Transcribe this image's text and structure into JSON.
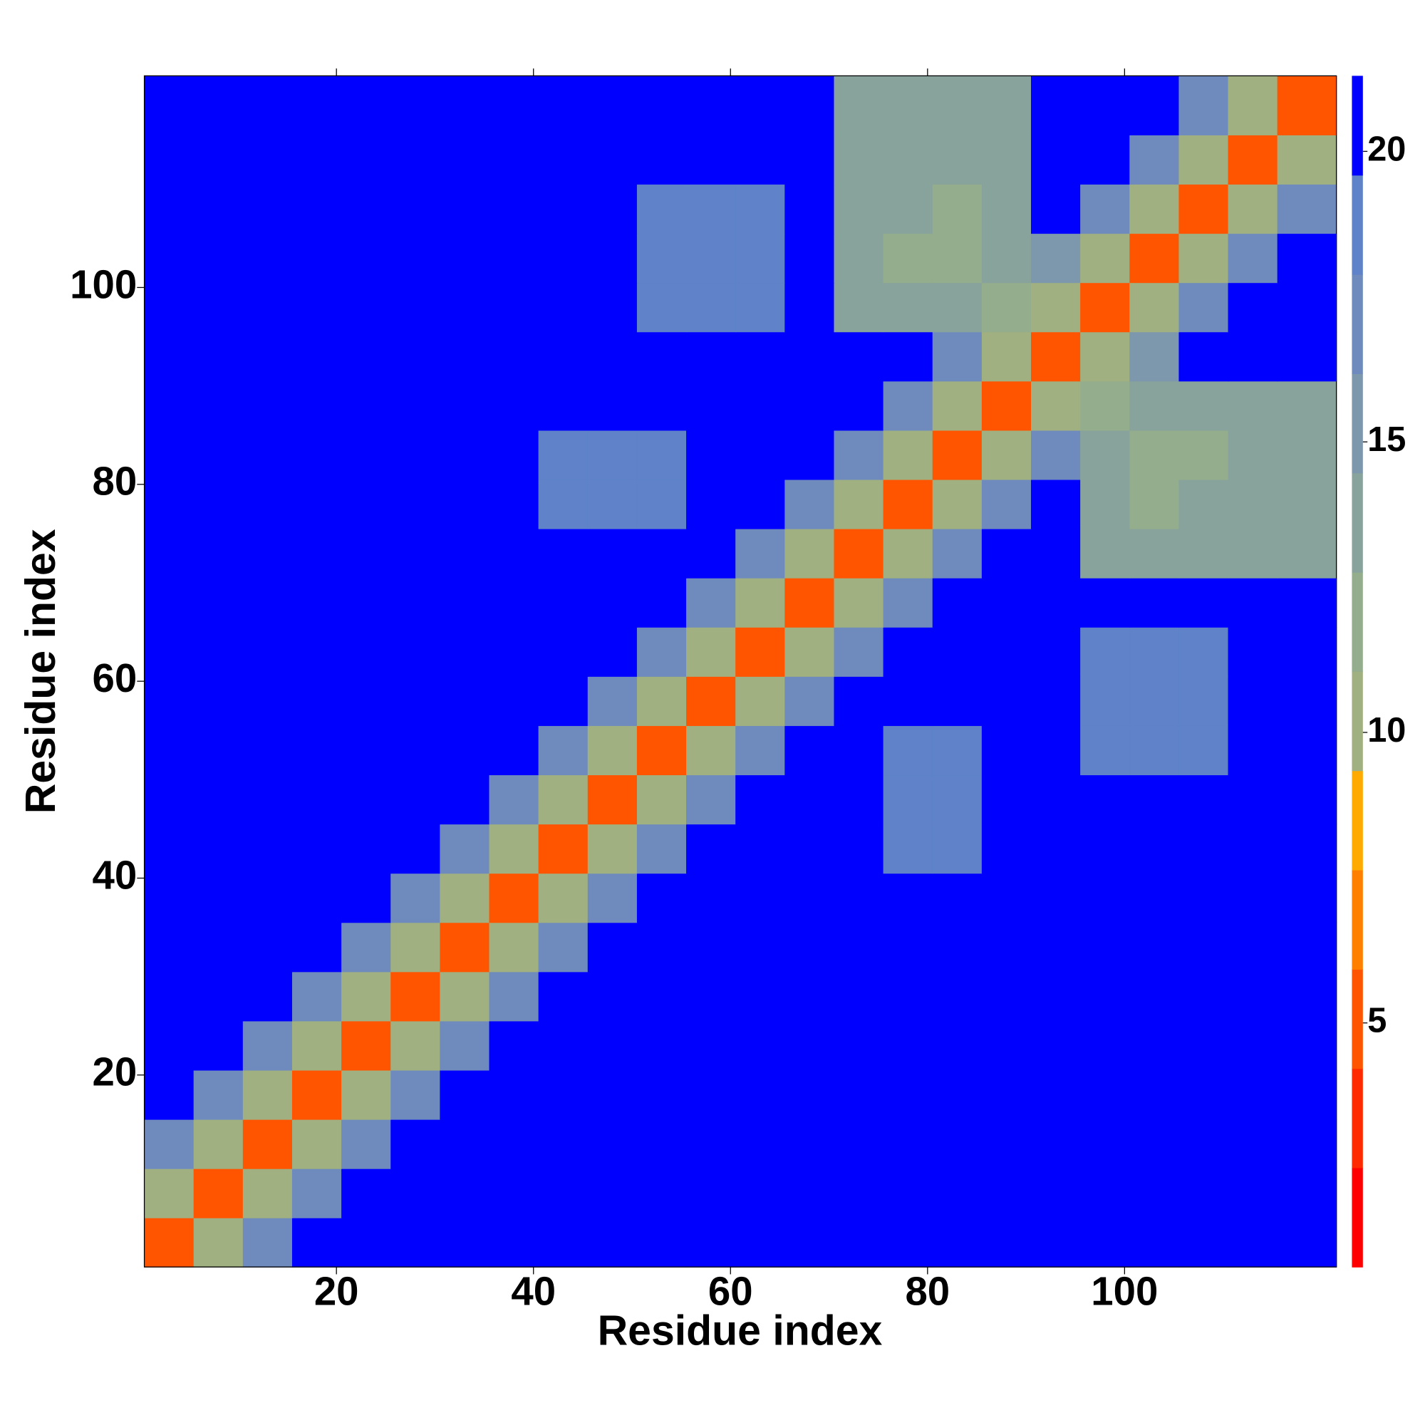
{
  "chart_data": {
    "type": "heatmap",
    "xlabel": "Residue index",
    "ylabel": "Residue index",
    "x": [
      0.5,
      5.5,
      10.5,
      15.5,
      20.5,
      25.5,
      30.5,
      35.5,
      40.5,
      45.5,
      50.5,
      55.5,
      60.5,
      65.5,
      70.5,
      75.5,
      80.5,
      85.5,
      90.5,
      95.5,
      100.5,
      105.5,
      110.5,
      115.5,
      121.5
    ],
    "y": [
      0.5,
      5.5,
      10.5,
      15.5,
      20.5,
      25.5,
      30.5,
      35.5,
      40.5,
      45.5,
      50.5,
      55.5,
      60.5,
      65.5,
      70.5,
      75.5,
      80.5,
      85.5,
      90.5,
      95.5,
      100.5,
      105.5,
      110.5,
      115.5,
      121.5
    ],
    "z": [
      [
        5,
        11,
        17,
        21,
        21,
        21,
        21,
        21,
        21,
        21,
        21,
        21,
        21,
        21,
        21,
        21,
        21,
        21,
        21,
        21,
        21,
        21,
        21,
        21
      ],
      [
        11,
        5,
        11,
        17,
        21,
        21,
        21,
        21,
        21,
        21,
        21,
        21,
        21,
        21,
        21,
        21,
        21,
        21,
        21,
        21,
        21,
        21,
        21,
        21
      ],
      [
        17,
        11,
        5,
        11,
        17,
        21,
        21,
        21,
        21,
        21,
        21,
        21,
        21,
        21,
        21,
        21,
        21,
        21,
        21,
        21,
        21,
        21,
        21,
        21
      ],
      [
        21,
        17,
        11,
        5,
        11,
        17,
        21,
        21,
        21,
        21,
        21,
        21,
        21,
        21,
        21,
        21,
        21,
        21,
        21,
        21,
        21,
        21,
        21,
        21
      ],
      [
        21,
        21,
        17,
        11,
        5,
        11,
        17,
        21,
        21,
        21,
        21,
        21,
        21,
        21,
        21,
        21,
        21,
        21,
        21,
        21,
        21,
        21,
        21,
        21
      ],
      [
        21,
        21,
        21,
        17,
        11,
        5,
        11,
        17,
        21,
        21,
        21,
        21,
        21,
        21,
        21,
        21,
        21,
        21,
        21,
        21,
        21,
        21,
        21,
        21
      ],
      [
        21,
        21,
        21,
        21,
        17,
        11,
        5,
        11,
        17,
        21,
        21,
        21,
        21,
        21,
        21,
        21,
        21,
        21,
        21,
        21,
        21,
        21,
        21,
        21
      ],
      [
        21,
        21,
        21,
        21,
        21,
        17,
        11,
        5,
        11,
        17,
        21,
        21,
        21,
        21,
        21,
        21,
        21,
        21,
        21,
        21,
        21,
        21,
        21,
        21
      ],
      [
        21,
        21,
        21,
        21,
        21,
        21,
        17,
        11,
        5,
        11,
        17,
        21,
        21,
        21,
        21,
        18,
        18,
        21,
        21,
        21,
        21,
        21,
        21,
        21
      ],
      [
        21,
        21,
        21,
        21,
        21,
        21,
        21,
        17,
        11,
        5,
        11,
        17,
        21,
        21,
        21,
        18,
        18,
        21,
        21,
        21,
        21,
        21,
        21,
        21
      ],
      [
        21,
        21,
        21,
        21,
        21,
        21,
        21,
        21,
        17,
        11,
        5,
        11,
        17,
        21,
        21,
        18,
        18,
        21,
        21,
        19,
        19,
        19,
        21,
        21
      ],
      [
        21,
        21,
        21,
        21,
        21,
        21,
        21,
        21,
        21,
        17,
        11,
        5,
        11,
        17,
        21,
        21,
        21,
        21,
        21,
        19,
        19,
        19,
        21,
        21
      ],
      [
        21,
        21,
        21,
        21,
        21,
        21,
        21,
        21,
        21,
        21,
        17,
        11,
        5,
        11,
        17,
        21,
        21,
        21,
        21,
        19,
        19,
        19,
        21,
        21
      ],
      [
        21,
        21,
        21,
        21,
        21,
        21,
        21,
        21,
        21,
        21,
        21,
        17,
        11,
        5,
        11,
        17,
        21,
        21,
        21,
        21,
        21,
        21,
        21,
        21
      ],
      [
        21,
        21,
        21,
        21,
        21,
        21,
        21,
        21,
        21,
        21,
        21,
        21,
        17,
        11,
        5,
        11,
        17,
        21,
        21,
        14,
        14,
        14,
        14,
        14
      ],
      [
        21,
        21,
        21,
        21,
        21,
        21,
        21,
        21,
        18,
        18,
        18,
        21,
        21,
        17,
        11,
        5,
        11,
        17,
        21,
        14,
        12,
        14,
        14,
        14
      ],
      [
        21,
        21,
        21,
        21,
        21,
        21,
        21,
        21,
        18,
        18,
        18,
        21,
        21,
        21,
        17,
        11,
        5,
        11,
        17,
        14,
        12,
        12,
        14,
        14
      ],
      [
        21,
        21,
        21,
        21,
        21,
        21,
        21,
        21,
        21,
        21,
        21,
        21,
        21,
        21,
        21,
        17,
        11,
        5,
        11,
        12,
        14,
        14,
        14,
        14
      ],
      [
        21,
        21,
        21,
        21,
        21,
        21,
        21,
        21,
        21,
        21,
        21,
        21,
        21,
        21,
        21,
        21,
        17,
        11,
        5,
        11,
        15,
        21,
        21,
        21
      ],
      [
        21,
        21,
        21,
        21,
        21,
        21,
        21,
        21,
        21,
        21,
        19,
        19,
        19,
        21,
        14,
        14,
        14,
        12,
        11,
        5,
        11,
        17,
        21,
        21
      ],
      [
        21,
        21,
        21,
        21,
        21,
        21,
        21,
        21,
        21,
        21,
        19,
        19,
        19,
        21,
        14,
        12,
        12,
        14,
        15,
        11,
        5,
        11,
        17,
        21
      ],
      [
        21,
        21,
        21,
        21,
        21,
        21,
        21,
        21,
        21,
        21,
        19,
        19,
        19,
        21,
        14,
        14,
        12,
        14,
        21,
        17,
        11,
        5,
        11,
        17
      ],
      [
        21,
        21,
        21,
        21,
        21,
        21,
        21,
        21,
        21,
        21,
        21,
        21,
        21,
        21,
        14,
        14,
        14,
        14,
        21,
        21,
        17,
        11,
        5,
        11
      ],
      [
        21,
        21,
        21,
        21,
        21,
        21,
        21,
        21,
        21,
        21,
        21,
        21,
        21,
        21,
        14,
        14,
        14,
        14,
        21,
        21,
        21,
        17,
        11,
        5
      ]
    ],
    "xlim": [
      0.5,
      121.5
    ],
    "ylim": [
      0.5,
      121.5
    ],
    "xticks": [
      20,
      40,
      60,
      80,
      100
    ],
    "yticks": [
      20,
      40,
      60,
      80,
      100
    ],
    "zlim": [
      0.8,
      21.3
    ],
    "zticks": [
      5,
      10,
      15,
      20
    ],
    "colors": [
      "#ff0000",
      "#ff2a00",
      "#ff5500",
      "#ff8000",
      "#ffaa00",
      "#a0b080",
      "#94ad8c",
      "#88a39c",
      "#7d97ad",
      "#6f8bbd",
      "#5f82c8",
      "#0000ff"
    ]
  }
}
